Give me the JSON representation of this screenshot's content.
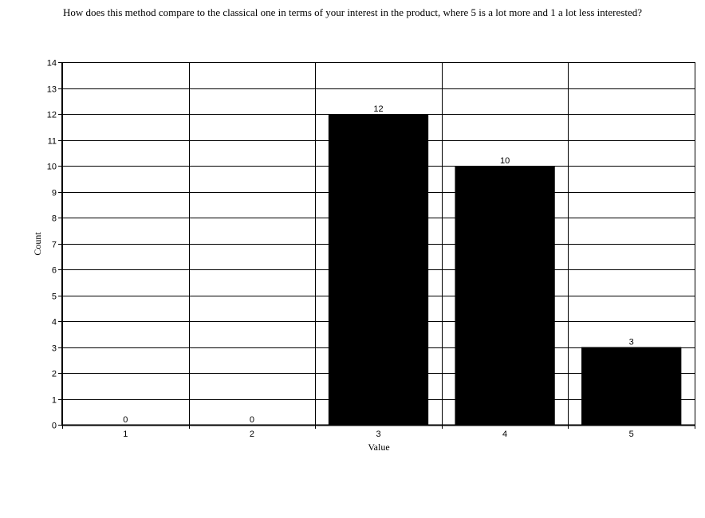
{
  "chart_data": {
    "type": "bar",
    "title": "How does this method compare to the classical one in terms of your interest in the product, where 5 is a lot more and 1 a lot less interested?",
    "xlabel": "Value",
    "ylabel": "Count",
    "categories": [
      "1",
      "2",
      "3",
      "4",
      "5"
    ],
    "values": [
      0,
      0,
      12,
      10,
      3
    ],
    "ylim": [
      0,
      14
    ],
    "yticks": [
      0,
      1,
      2,
      3,
      4,
      5,
      6,
      7,
      8,
      9,
      10,
      11,
      12,
      13,
      14
    ],
    "grid": true,
    "bar_color": "#000000",
    "data_labels": true
  }
}
